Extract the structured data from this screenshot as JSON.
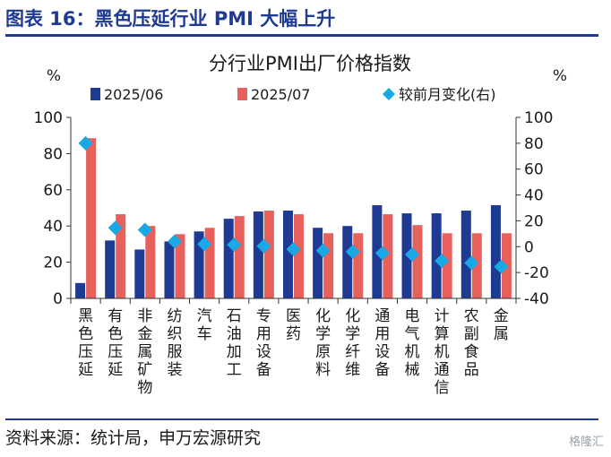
{
  "figure_title": "图表 16：黑色压延行业 PMI 大幅上升",
  "source": "资料来源：统计局，申万宏源研究",
  "watermark": "格隆汇",
  "chart_data": {
    "type": "bar",
    "title": "分行业PMI出厂价格指数",
    "y_unit_left": "%",
    "y_unit_right": "%",
    "ylim_left": [
      0,
      100
    ],
    "yticks_left": [
      "0",
      "20",
      "40",
      "60",
      "80",
      "100"
    ],
    "ylim_right": [
      -40,
      100
    ],
    "yticks_right": [
      "-40",
      "-20",
      "0",
      "20",
      "40",
      "60",
      "80",
      "100"
    ],
    "legend": [
      "2025/06",
      "2025/07",
      "较前月变化(右)"
    ],
    "categories": [
      "黑色压延",
      "有色压延",
      "非金属矿物",
      "纺织服装",
      "汽车",
      "石油加工",
      "专用设备",
      "医药",
      "化学原料",
      "化学纤维",
      "通用设备",
      "电气机械",
      "计算机通信",
      "农副食品",
      "金属"
    ],
    "series": [
      {
        "name": "2025/06",
        "type": "bar",
        "axis": "left",
        "color": "#1f3a93",
        "values": [
          8.5,
          32,
          27,
          31.5,
          37,
          44,
          48,
          48.5,
          39,
          40,
          51.5,
          47,
          47,
          48.5,
          51.5
        ]
      },
      {
        "name": "2025/07",
        "type": "bar",
        "axis": "left",
        "color": "#e8605c",
        "values": [
          88.5,
          46.5,
          40,
          35.5,
          39,
          45.5,
          48.5,
          46.5,
          36,
          36,
          46.5,
          40.5,
          36,
          36,
          36
        ]
      },
      {
        "name": "较前月变化(右)",
        "type": "marker",
        "axis": "right",
        "color": "#19a8e6",
        "values": [
          80,
          14.5,
          13,
          4,
          2,
          1.5,
          0.5,
          -2,
          -3,
          -4,
          -5,
          -6,
          -11,
          -12.5,
          -15.5
        ]
      }
    ]
  }
}
